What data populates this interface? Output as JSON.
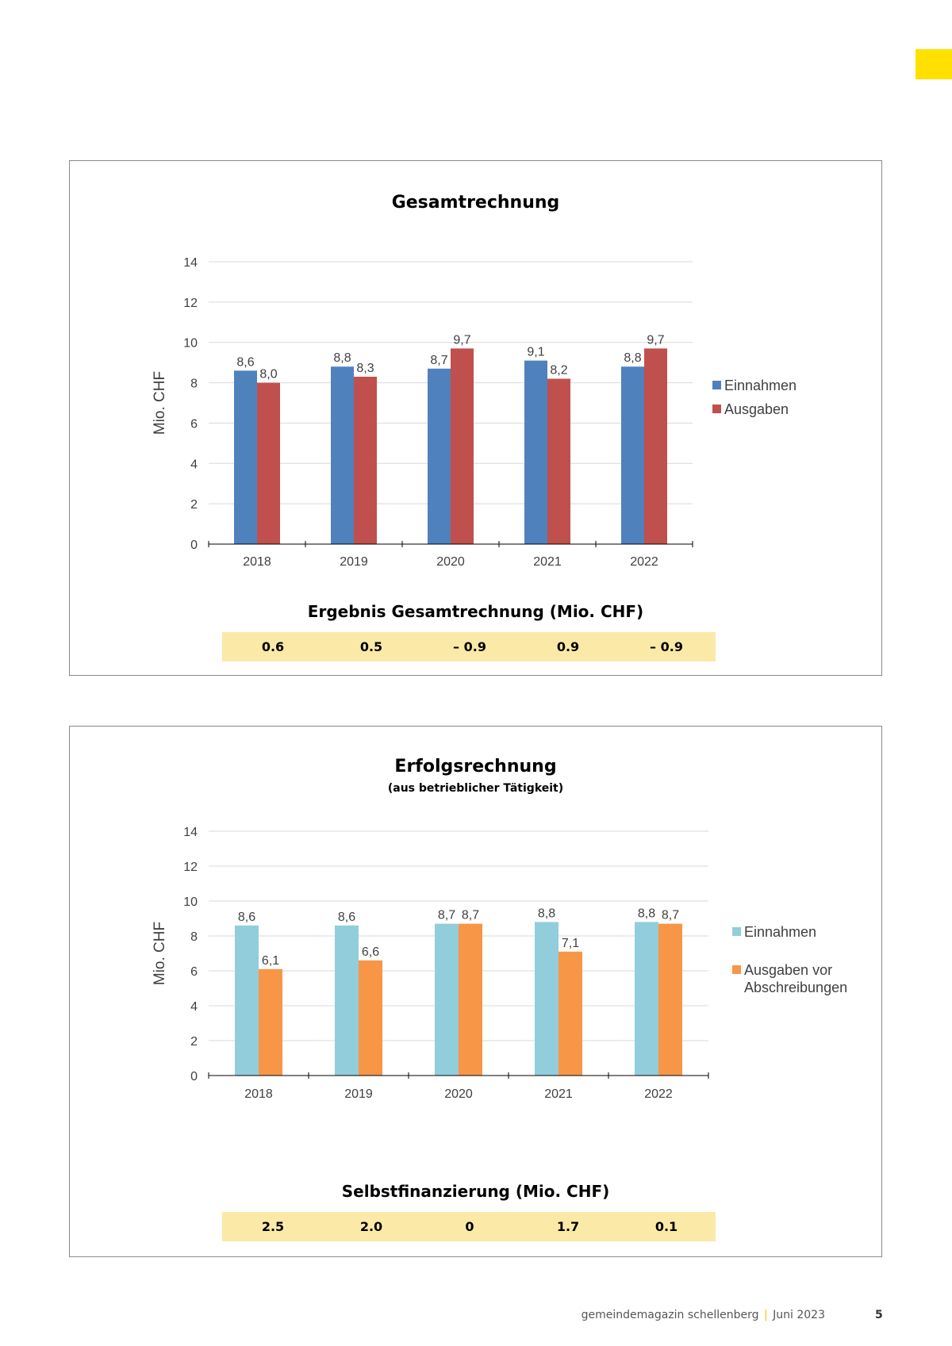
{
  "colors": {
    "accent": "#ffe000",
    "result_band": "#fbe9a8",
    "gridline": "#d9d9d9",
    "axis": "#000000"
  },
  "chart_data": [
    {
      "type": "bar",
      "title": "Gesamtrechnung",
      "subtitle": "",
      "ylabel": "Mio. CHF",
      "xlabel": "",
      "categories": [
        "2018",
        "2019",
        "2020",
        "2021",
        "2022"
      ],
      "series": [
        {
          "name": "Einnahmen",
          "color": "#4f81bd",
          "values": [
            8.6,
            8.8,
            8.7,
            9.1,
            8.8
          ],
          "labels": [
            "8,6",
            "8,8",
            "8,7",
            "9,1",
            "8,8"
          ]
        },
        {
          "name": "Ausgaben",
          "color": "#c0504d",
          "values": [
            8.0,
            8.3,
            9.7,
            8.2,
            9.7
          ],
          "labels": [
            "8,0",
            "8,3",
            "9,7",
            "8,2",
            "9,7"
          ]
        }
      ],
      "ylim": [
        0,
        14
      ],
      "yticks": [
        "0",
        "2",
        "4",
        "6",
        "8",
        "10",
        "12",
        "14"
      ],
      "grid": true,
      "legend_position": "right"
    },
    {
      "type": "bar",
      "title": "Erfolgsrechnung",
      "subtitle": "(aus betrieblicher Tätigkeit)",
      "ylabel": "Mio. CHF",
      "xlabel": "",
      "categories": [
        "2018",
        "2019",
        "2020",
        "2021",
        "2022"
      ],
      "series": [
        {
          "name": "Einnahmen",
          "color": "#92cddc",
          "values": [
            8.6,
            8.6,
            8.7,
            8.8,
            8.8
          ],
          "labels": [
            "8,6",
            "8,6",
            "8,7",
            "8,8",
            "8,8"
          ]
        },
        {
          "name": "Ausgaben vor Abschreibungen",
          "color": "#f79646",
          "values": [
            6.1,
            6.6,
            8.7,
            7.1,
            8.7
          ],
          "labels": [
            "6,1",
            "6,6",
            "8,7",
            "7,1",
            "8,7"
          ]
        }
      ],
      "ylim": [
        0,
        14
      ],
      "yticks": [
        "0",
        "2",
        "4",
        "6",
        "8",
        "10",
        "12",
        "14"
      ],
      "grid": true,
      "legend_position": "right"
    }
  ],
  "panel1": {
    "result_title": "Ergebnis Gesamtrechnung (Mio. CHF)",
    "results": [
      "0.6",
      "0.5",
      "– 0.9",
      "0.9",
      "– 0.9"
    ]
  },
  "panel2": {
    "result_title": "Selbstfinanzierung (Mio. CHF)",
    "results": [
      "2.5",
      "2.0",
      "0",
      "1.7",
      "0.1"
    ]
  },
  "footer": {
    "publication": "gemeindemagazin schellenberg",
    "separator": "|",
    "issue": "Juni 2023",
    "page_number": "5"
  }
}
